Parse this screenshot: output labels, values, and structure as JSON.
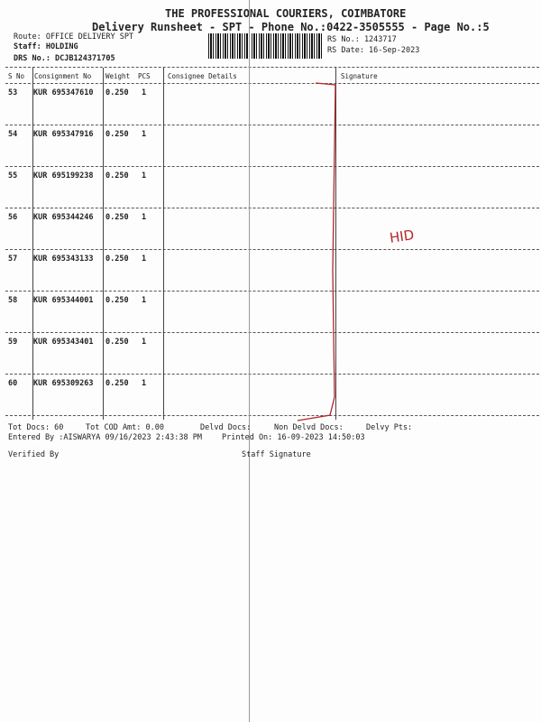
{
  "header": {
    "company": "THE PROFESSIONAL COURIERS, COIMBATORE",
    "subtitle": "Delivery Runsheet - SPT - Phone No.:0422-3505555 - Page No.:5",
    "route": "Route: OFFICE DELIVERY SPT",
    "staff": "Staff: HOLDING",
    "drs": "DRS No.: DCJB124371705",
    "rs_no": "RS No.: 1243717",
    "rs_date": "RS Date: 16-Sep-2023"
  },
  "columns": [
    "S No",
    "Consignment No",
    "Weight",
    "PCS",
    "Consignee Details",
    "Signature"
  ],
  "rows": [
    {
      "sno": "53",
      "cn": "KUR 695347610",
      "wt": "0.250",
      "pcs": "1"
    },
    {
      "sno": "54",
      "cn": "KUR 695347916",
      "wt": "0.250",
      "pcs": "1"
    },
    {
      "sno": "55",
      "cn": "KUR 695199238",
      "wt": "0.250",
      "pcs": "1"
    },
    {
      "sno": "56",
      "cn": "KUR 695344246",
      "wt": "0.250",
      "pcs": "1"
    },
    {
      "sno": "57",
      "cn": "KUR 695343133",
      "wt": "0.250",
      "pcs": "1"
    },
    {
      "sno": "58",
      "cn": "KUR 695344001",
      "wt": "0.250",
      "pcs": "1"
    },
    {
      "sno": "59",
      "cn": "KUR 695343401",
      "wt": "0.250",
      "pcs": "1"
    },
    {
      "sno": "60",
      "cn": "KUR 695309263",
      "wt": "0.250",
      "pcs": "1"
    }
  ],
  "handwriting": "HID",
  "footer": {
    "tot_docs": "Tot Docs:  60",
    "tot_cod": "Tot COD Amt:    0.00",
    "delvd": "Delvd Docs:",
    "non_delvd": "Non Delvd Docs:",
    "delvy_pts": "Delvy Pts:",
    "entered_by": "Entered By :AISWARYA 09/16/2023 2:43:38 PM",
    "printed_on": "Printed On: 16-09-2023 14:50:03",
    "verified_by": "Verified By",
    "staff_signature": "Staff Signature"
  },
  "colors": {
    "ink": "#222222",
    "pen": "#b3262a"
  }
}
